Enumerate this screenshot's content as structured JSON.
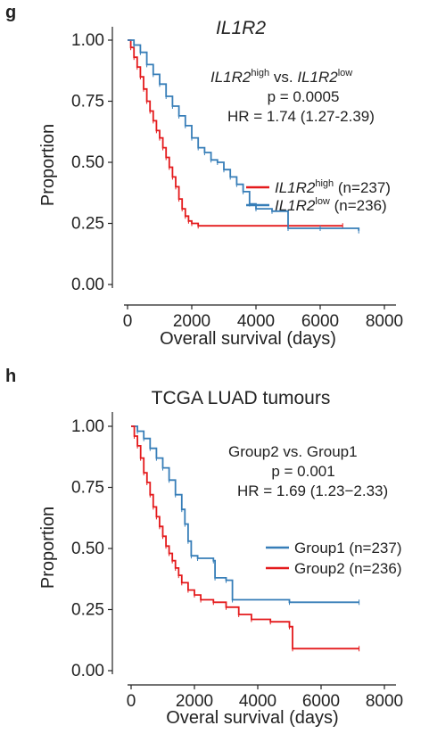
{
  "panels": {
    "g": {
      "letter": "g",
      "title": "IL1R2",
      "annotation": {
        "gene1": "IL1R2",
        "sup1": "high",
        "vs": " vs. ",
        "gene2": "IL1R2",
        "sup2": "low",
        "p": "p = 0.0005",
        "hr": "HR = 1.74 (1.27-2.39)"
      },
      "legend": [
        {
          "gene": "IL1R2",
          "sup": "high",
          "n": " (n=237)",
          "color": "#e41a1c"
        },
        {
          "gene": "IL1R2",
          "sup": "low",
          "n": " (n=236)",
          "color": "#377eb8"
        }
      ],
      "xlabel": "Overall survival (days)",
      "ylabel": "Proportion"
    },
    "h": {
      "letter": "h",
      "title": "TCGA LUAD tumours",
      "annotation": {
        "comparison": "Group2 vs. Group1",
        "p": "p = 0.001",
        "hr": "HR = 1.69 (1.23−2.33)"
      },
      "legend": [
        {
          "label": "Group1 (n=237)",
          "color": "#377eb8"
        },
        {
          "label": "Group2 (n=236)",
          "color": "#e41a1c"
        }
      ],
      "xlabel": "Overal survival (days)",
      "ylabel": "Proportion"
    }
  },
  "chart_data": [
    {
      "type": "line",
      "title": "IL1R2",
      "xlabel": "Overall survival (days)",
      "ylabel": "Proportion",
      "xlim": [
        0,
        8000
      ],
      "ylim": [
        0,
        1
      ],
      "xticks": [
        "0",
        "2000",
        "4000",
        "6000",
        "8000"
      ],
      "yticks": [
        "0.00",
        "0.25",
        "0.50",
        "0.75",
        "1.00"
      ],
      "series": [
        {
          "name": "IL1R2 high (n=237)",
          "color": "#e41a1c",
          "points": [
            [
              0,
              1.0
            ],
            [
              100,
              0.97
            ],
            [
              200,
              0.93
            ],
            [
              300,
              0.89
            ],
            [
              400,
              0.85
            ],
            [
              500,
              0.8
            ],
            [
              600,
              0.75
            ],
            [
              700,
              0.71
            ],
            [
              800,
              0.67
            ],
            [
              900,
              0.63
            ],
            [
              1000,
              0.6
            ],
            [
              1100,
              0.56
            ],
            [
              1200,
              0.52
            ],
            [
              1300,
              0.48
            ],
            [
              1400,
              0.44
            ],
            [
              1500,
              0.4
            ],
            [
              1600,
              0.35
            ],
            [
              1700,
              0.31
            ],
            [
              1800,
              0.28
            ],
            [
              1900,
              0.26
            ],
            [
              2000,
              0.25
            ],
            [
              2200,
              0.24
            ],
            [
              6700,
              0.24
            ]
          ]
        },
        {
          "name": "IL1R2 low (n=236)",
          "color": "#377eb8",
          "points": [
            [
              0,
              1.0
            ],
            [
              200,
              0.98
            ],
            [
              400,
              0.95
            ],
            [
              600,
              0.9
            ],
            [
              800,
              0.86
            ],
            [
              1000,
              0.82
            ],
            [
              1200,
              0.77
            ],
            [
              1400,
              0.73
            ],
            [
              1600,
              0.69
            ],
            [
              1800,
              0.65
            ],
            [
              2000,
              0.6
            ],
            [
              2200,
              0.56
            ],
            [
              2400,
              0.54
            ],
            [
              2600,
              0.51
            ],
            [
              2800,
              0.5
            ],
            [
              3000,
              0.47
            ],
            [
              3200,
              0.44
            ],
            [
              3400,
              0.41
            ],
            [
              3600,
              0.38
            ],
            [
              3800,
              0.33
            ],
            [
              4000,
              0.31
            ],
            [
              4500,
              0.3
            ],
            [
              5000,
              0.23
            ],
            [
              6000,
              0.23
            ],
            [
              7200,
              0.22
            ]
          ]
        }
      ]
    },
    {
      "type": "line",
      "title": "TCGA LUAD tumours",
      "xlabel": "Overal survival (days)",
      "ylabel": "Proportion",
      "xlim": [
        0,
        8000
      ],
      "ylim": [
        0,
        1
      ],
      "xticks": [
        "0",
        "2000",
        "4000",
        "6000",
        "8000"
      ],
      "yticks": [
        "0.00",
        "0.25",
        "0.50",
        "0.75",
        "1.00"
      ],
      "series": [
        {
          "name": "Group1 (n=237)",
          "color": "#377eb8",
          "points": [
            [
              0,
              1.0
            ],
            [
              200,
              0.98
            ],
            [
              400,
              0.95
            ],
            [
              600,
              0.91
            ],
            [
              800,
              0.87
            ],
            [
              1000,
              0.83
            ],
            [
              1200,
              0.78
            ],
            [
              1400,
              0.72
            ],
            [
              1600,
              0.66
            ],
            [
              1700,
              0.6
            ],
            [
              1800,
              0.53
            ],
            [
              1900,
              0.47
            ],
            [
              2100,
              0.46
            ],
            [
              2600,
              0.45
            ],
            [
              2650,
              0.38
            ],
            [
              3000,
              0.37
            ],
            [
              3200,
              0.29
            ],
            [
              5000,
              0.28
            ],
            [
              7200,
              0.28
            ]
          ]
        },
        {
          "name": "Group2 (n=236)",
          "color": "#e41a1c",
          "points": [
            [
              0,
              1.0
            ],
            [
              100,
              0.96
            ],
            [
              200,
              0.92
            ],
            [
              300,
              0.87
            ],
            [
              400,
              0.81
            ],
            [
              500,
              0.77
            ],
            [
              600,
              0.72
            ],
            [
              700,
              0.67
            ],
            [
              800,
              0.63
            ],
            [
              900,
              0.59
            ],
            [
              1000,
              0.55
            ],
            [
              1100,
              0.51
            ],
            [
              1200,
              0.48
            ],
            [
              1300,
              0.45
            ],
            [
              1400,
              0.42
            ],
            [
              1500,
              0.39
            ],
            [
              1600,
              0.36
            ],
            [
              1800,
              0.33
            ],
            [
              2000,
              0.31
            ],
            [
              2200,
              0.29
            ],
            [
              2600,
              0.28
            ],
            [
              3000,
              0.26
            ],
            [
              3400,
              0.23
            ],
            [
              3800,
              0.21
            ],
            [
              4400,
              0.2
            ],
            [
              5000,
              0.18
            ],
            [
              5100,
              0.09
            ],
            [
              7200,
              0.09
            ]
          ]
        }
      ]
    }
  ]
}
